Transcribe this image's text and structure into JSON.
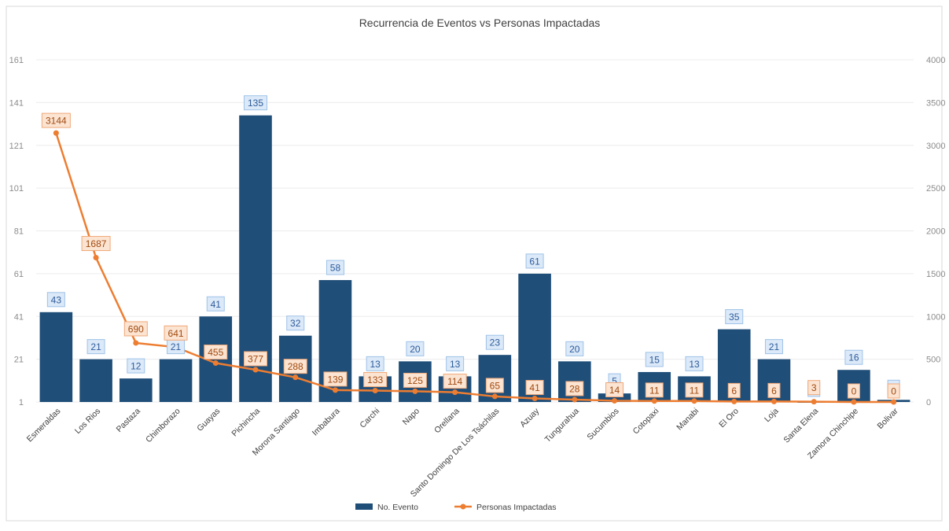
{
  "chart_data": {
    "type": "bar",
    "title": "Recurrencia de Eventos vs Personas Impactadas",
    "categories": [
      "Esmeraldas",
      "Los Rios",
      "Pastaza",
      "Chimborazo",
      "Guayas",
      "Pichincha",
      "Morona Santiago",
      "Imbabura",
      "Carchi",
      "Napo",
      "Orellana",
      "Santo Domingo De Los Tsáchilas",
      "Azuay",
      "Tungurahua",
      "Sucumbios",
      "Cotopaxi",
      "Manabi",
      "El Oro",
      "Loja",
      "Santa Elena",
      "Zamora Chinchipe",
      "Bolivar"
    ],
    "series": [
      {
        "name": "No. Evento",
        "type": "bar",
        "axis": "left",
        "color": "#1f4e79",
        "values": [
          43,
          21,
          12,
          21,
          41,
          135,
          32,
          58,
          13,
          20,
          13,
          23,
          61,
          20,
          5,
          15,
          13,
          35,
          21,
          1,
          16,
          2
        ]
      },
      {
        "name": "Personas Impactadas",
        "type": "line",
        "axis": "right",
        "color": "#ed7d31",
        "values": [
          3144,
          1687,
          690,
          641,
          455,
          377,
          288,
          139,
          133,
          125,
          114,
          65,
          41,
          28,
          14,
          11,
          11,
          6,
          6,
          3,
          0,
          0
        ]
      }
    ],
    "y_left": {
      "ticks": [
        "1",
        "21",
        "41",
        "61",
        "81",
        "101",
        "121",
        "141",
        "161"
      ],
      "ylim": [
        1,
        161
      ]
    },
    "y_right": {
      "ticks": [
        "0",
        "500",
        "1000",
        "1500",
        "2000",
        "2500",
        "3000",
        "3500",
        "4000"
      ],
      "ylim": [
        0,
        4000
      ]
    },
    "grid": true,
    "legend_position": "bottom"
  }
}
